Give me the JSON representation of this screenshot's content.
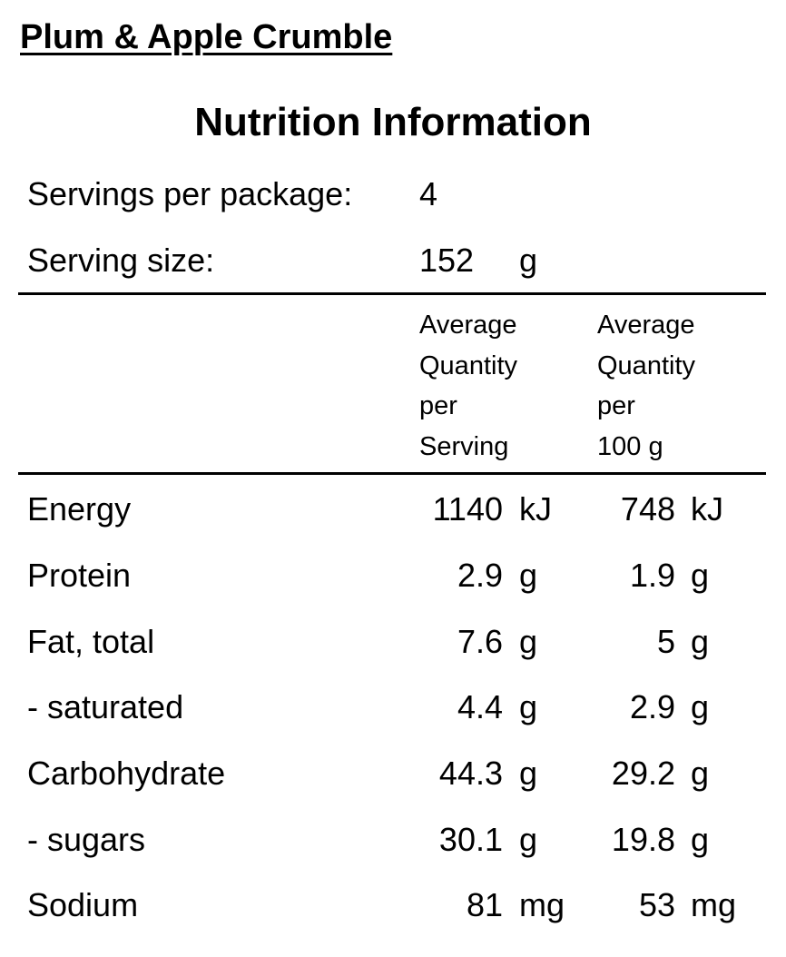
{
  "product_title": "Plum & Apple Crumble",
  "panel_heading": "Nutrition Information",
  "servings_per_package": {
    "label": "Servings per package:",
    "value": "4"
  },
  "serving_size": {
    "label": "Serving size:",
    "value": "152",
    "unit": "g"
  },
  "column_headers": {
    "per_serving": [
      "Average",
      "Quantity",
      "per",
      "Serving"
    ],
    "per_100g": [
      "Average",
      "Quantity",
      "per",
      "100 g"
    ]
  },
  "rows": [
    {
      "name": "Energy",
      "per_serving": "1140",
      "per_serving_unit": "kJ",
      "per_100g": "748",
      "per_100g_unit": "kJ"
    },
    {
      "name": "Protein",
      "per_serving": "2.9",
      "per_serving_unit": "g",
      "per_100g": "1.9",
      "per_100g_unit": "g"
    },
    {
      "name": "Fat, total",
      "per_serving": "7.6",
      "per_serving_unit": "g",
      "per_100g": "5",
      "per_100g_unit": "g"
    },
    {
      "name": "- saturated",
      "per_serving": "4.4",
      "per_serving_unit": "g",
      "per_100g": "2.9",
      "per_100g_unit": "g"
    },
    {
      "name": "Carbohydrate",
      "per_serving": "44.3",
      "per_serving_unit": "g",
      "per_100g": "29.2",
      "per_100g_unit": "g"
    },
    {
      "name": "- sugars",
      "per_serving": "30.1",
      "per_serving_unit": "g",
      "per_100g": "19.8",
      "per_100g_unit": "g"
    },
    {
      "name": "Sodium",
      "per_serving": "81",
      "per_serving_unit": "mg",
      "per_100g": "53",
      "per_100g_unit": "mg"
    }
  ]
}
